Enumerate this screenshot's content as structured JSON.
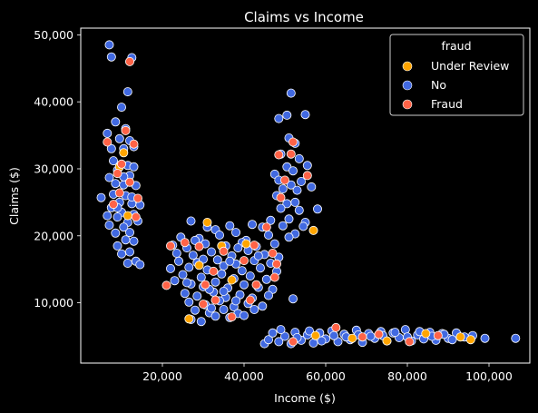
{
  "chart_data": {
    "type": "scatter",
    "title": "Claims vs Income",
    "xlabel": "Income ($)",
    "ylabel": "Claims ($)",
    "xlim": [
      0,
      110000
    ],
    "ylim": [
      1000,
      51000
    ],
    "xticks": [
      20000,
      40000,
      60000,
      80000,
      100000
    ],
    "xtick_labels": [
      "20,000",
      "40,000",
      "60,000",
      "80,000",
      "100,000"
    ],
    "yticks": [
      10000,
      20000,
      30000,
      40000,
      50000
    ],
    "ytick_labels": [
      "10,000",
      "20,000",
      "30,000",
      "40,000",
      "50,000"
    ],
    "grid": false,
    "legend": {
      "title": "fraud",
      "position": "top-right",
      "entries": [
        {
          "label": "Under Review",
          "color": "#ffa500"
        },
        {
          "label": "No",
          "color": "#4169e1"
        },
        {
          "label": "Fraud",
          "color": "#ff6347"
        }
      ]
    },
    "series": [
      {
        "name": "No",
        "color": "#4169e1",
        "points": [
          [
            7000,
            48500
          ],
          [
            7500,
            46700
          ],
          [
            12500,
            46600
          ],
          [
            11500,
            41500
          ],
          [
            10000,
            39200
          ],
          [
            8500,
            37000
          ],
          [
            11000,
            36000
          ],
          [
            6500,
            35300
          ],
          [
            9500,
            34500
          ],
          [
            12000,
            34200
          ],
          [
            13000,
            33300
          ],
          [
            7500,
            33000
          ],
          [
            10500,
            33000
          ],
          [
            8000,
            31200
          ],
          [
            11500,
            30500
          ],
          [
            13000,
            30300
          ],
          [
            9000,
            29800
          ],
          [
            12000,
            29000
          ],
          [
            7000,
            28700
          ],
          [
            8500,
            27800
          ],
          [
            10500,
            27600
          ],
          [
            13500,
            27500
          ],
          [
            5000,
            25700
          ],
          [
            8000,
            26200
          ],
          [
            11000,
            26000
          ],
          [
            9500,
            25000
          ],
          [
            12500,
            24800
          ],
          [
            7500,
            24200
          ],
          [
            14500,
            24600
          ],
          [
            10000,
            23500
          ],
          [
            13000,
            23200
          ],
          [
            6500,
            23000
          ],
          [
            9000,
            22800
          ],
          [
            11500,
            22000
          ],
          [
            14000,
            22200
          ],
          [
            7000,
            21600
          ],
          [
            10500,
            21300
          ],
          [
            12000,
            20500
          ],
          [
            8500,
            20400
          ],
          [
            11000,
            19400
          ],
          [
            13000,
            19200
          ],
          [
            9000,
            18500
          ],
          [
            12000,
            17600
          ],
          [
            10000,
            17300
          ],
          [
            11500,
            15900
          ],
          [
            13500,
            16200
          ],
          [
            14500,
            15700
          ],
          [
            9000,
            24200
          ],
          [
            12500,
            25800
          ],
          [
            10500,
            28800
          ],
          [
            51500,
            41300
          ],
          [
            50500,
            38000
          ],
          [
            48500,
            37500
          ],
          [
            55000,
            38100
          ],
          [
            51000,
            34600
          ],
          [
            52500,
            33800
          ],
          [
            53500,
            31500
          ],
          [
            49000,
            32200
          ],
          [
            50500,
            30300
          ],
          [
            55500,
            30500
          ],
          [
            47500,
            29200
          ],
          [
            52000,
            29700
          ],
          [
            48500,
            28300
          ],
          [
            54000,
            28100
          ],
          [
            51500,
            27600
          ],
          [
            49500,
            27000
          ],
          [
            53000,
            26800
          ],
          [
            56500,
            27300
          ],
          [
            48000,
            26000
          ],
          [
            52500,
            25000
          ],
          [
            50500,
            24800
          ],
          [
            49000,
            24100
          ],
          [
            53500,
            23800
          ],
          [
            58000,
            24000
          ],
          [
            46500,
            22300
          ],
          [
            51000,
            22500
          ],
          [
            55000,
            22000
          ],
          [
            49500,
            21500
          ],
          [
            52500,
            20300
          ],
          [
            54500,
            21400
          ],
          [
            51000,
            19800
          ],
          [
            52000,
            10600
          ],
          [
            27000,
            22200
          ],
          [
            31000,
            21300
          ],
          [
            33000,
            20900
          ],
          [
            36500,
            21500
          ],
          [
            38000,
            20500
          ],
          [
            42000,
            21700
          ],
          [
            44500,
            21300
          ],
          [
            24500,
            19800
          ],
          [
            29000,
            19600
          ],
          [
            34000,
            20100
          ],
          [
            40500,
            19300
          ],
          [
            46000,
            20100
          ],
          [
            22500,
            18600
          ],
          [
            26000,
            18200
          ],
          [
            30500,
            18800
          ],
          [
            35500,
            18500
          ],
          [
            39500,
            19000
          ],
          [
            43000,
            18400
          ],
          [
            47500,
            18800
          ],
          [
            23500,
            17400
          ],
          [
            27500,
            17100
          ],
          [
            32000,
            17600
          ],
          [
            37000,
            17000
          ],
          [
            41000,
            17800
          ],
          [
            45000,
            17200
          ],
          [
            48500,
            16800
          ],
          [
            24000,
            16200
          ],
          [
            28500,
            16000
          ],
          [
            33500,
            16400
          ],
          [
            38000,
            15800
          ],
          [
            42500,
            16300
          ],
          [
            46500,
            15900
          ],
          [
            22000,
            15100
          ],
          [
            26500,
            15300
          ],
          [
            31000,
            14900
          ],
          [
            35000,
            15500
          ],
          [
            39500,
            14800
          ],
          [
            44000,
            15200
          ],
          [
            48000,
            14700
          ],
          [
            25000,
            14200
          ],
          [
            29500,
            13800
          ],
          [
            34500,
            14300
          ],
          [
            37500,
            13600
          ],
          [
            41500,
            14000
          ],
          [
            45500,
            13500
          ],
          [
            27000,
            12800
          ],
          [
            30000,
            12400
          ],
          [
            33000,
            13100
          ],
          [
            36000,
            12200
          ],
          [
            40000,
            12700
          ],
          [
            43500,
            12300
          ],
          [
            47000,
            12000
          ],
          [
            25500,
            11400
          ],
          [
            28500,
            11000
          ],
          [
            32500,
            11600
          ],
          [
            35500,
            10800
          ],
          [
            39000,
            11200
          ],
          [
            42000,
            10700
          ],
          [
            46000,
            11100
          ],
          [
            26500,
            10100
          ],
          [
            30500,
            9700
          ],
          [
            34000,
            10300
          ],
          [
            37500,
            9400
          ],
          [
            41000,
            9900
          ],
          [
            44500,
            9500
          ],
          [
            28000,
            8900
          ],
          [
            31500,
            8500
          ],
          [
            35000,
            9000
          ],
          [
            38500,
            8400
          ],
          [
            27000,
            7500
          ],
          [
            29500,
            7200
          ],
          [
            36500,
            7800
          ],
          [
            33000,
            8000
          ],
          [
            40000,
            8100
          ],
          [
            23000,
            13300
          ],
          [
            28000,
            19300
          ],
          [
            38500,
            18200
          ],
          [
            43500,
            17000
          ],
          [
            30000,
            16500
          ],
          [
            36500,
            16200
          ],
          [
            26000,
            13000
          ],
          [
            31500,
            12000
          ],
          [
            35000,
            11700
          ],
          [
            38000,
            10300
          ],
          [
            32000,
            9200
          ],
          [
            42500,
            9000
          ],
          [
            45000,
            3900
          ],
          [
            46000,
            4500
          ],
          [
            47000,
            5500
          ],
          [
            48500,
            4200
          ],
          [
            50000,
            5000
          ],
          [
            51500,
            3900
          ],
          [
            52500,
            5600
          ],
          [
            54000,
            4400
          ],
          [
            55500,
            5200
          ],
          [
            57000,
            4000
          ],
          [
            58500,
            5500
          ],
          [
            60000,
            4600
          ],
          [
            61500,
            5800
          ],
          [
            63000,
            4200
          ],
          [
            64500,
            5300
          ],
          [
            66000,
            4500
          ],
          [
            67500,
            5900
          ],
          [
            69000,
            4100
          ],
          [
            70500,
            5400
          ],
          [
            72000,
            4700
          ],
          [
            73500,
            5700
          ],
          [
            75000,
            4300
          ],
          [
            76500,
            5500
          ],
          [
            78000,
            4800
          ],
          [
            79500,
            6000
          ],
          [
            81000,
            4300
          ],
          [
            82500,
            5200
          ],
          [
            84000,
            4600
          ],
          [
            85500,
            5600
          ],
          [
            87000,
            4400
          ],
          [
            88500,
            5400
          ],
          [
            90000,
            4700
          ],
          [
            92000,
            5500
          ],
          [
            94000,
            4900
          ],
          [
            96000,
            5100
          ],
          [
            99000,
            4700
          ],
          [
            106500,
            4700
          ],
          [
            49000,
            6000
          ],
          [
            53000,
            4800
          ],
          [
            56000,
            5800
          ],
          [
            59000,
            4300
          ],
          [
            62000,
            5100
          ],
          [
            65000,
            4900
          ],
          [
            68000,
            5200
          ],
          [
            71000,
            5000
          ],
          [
            74000,
            5100
          ],
          [
            77000,
            5600
          ],
          [
            80000,
            4900
          ],
          [
            83000,
            5700
          ],
          [
            86000,
            5000
          ],
          [
            89000,
            5300
          ],
          [
            91000,
            4500
          ]
        ]
      },
      {
        "name": "Under Review",
        "color": "#ffa500",
        "points": [
          [
            9500,
            30300
          ],
          [
            10500,
            32400
          ],
          [
            11500,
            23000
          ],
          [
            31000,
            22000
          ],
          [
            34500,
            18500
          ],
          [
            40500,
            18800
          ],
          [
            29000,
            15600
          ],
          [
            37000,
            13400
          ],
          [
            26500,
            7600
          ],
          [
            57000,
            20800
          ],
          [
            57500,
            5100
          ],
          [
            66500,
            4700
          ],
          [
            75000,
            4300
          ],
          [
            93000,
            4900
          ],
          [
            95500,
            4500
          ],
          [
            84500,
            5400
          ]
        ]
      },
      {
        "name": "Fraud",
        "color": "#ff6347",
        "points": [
          [
            12000,
            46000
          ],
          [
            6500,
            34000
          ],
          [
            11000,
            35700
          ],
          [
            13000,
            33700
          ],
          [
            10000,
            30700
          ],
          [
            9000,
            29300
          ],
          [
            12000,
            28000
          ],
          [
            9500,
            26400
          ],
          [
            14000,
            25600
          ],
          [
            8000,
            24700
          ],
          [
            13500,
            22800
          ],
          [
            52000,
            34000
          ],
          [
            51500,
            32200
          ],
          [
            55500,
            29000
          ],
          [
            50000,
            28300
          ],
          [
            49000,
            25700
          ],
          [
            48500,
            32100
          ],
          [
            22000,
            18500
          ],
          [
            25500,
            19000
          ],
          [
            29000,
            18400
          ],
          [
            35000,
            17700
          ],
          [
            42500,
            18600
          ],
          [
            45500,
            21300
          ],
          [
            32500,
            14700
          ],
          [
            40000,
            16300
          ],
          [
            47000,
            17400
          ],
          [
            48000,
            15800
          ],
          [
            30500,
            12700
          ],
          [
            43000,
            12700
          ],
          [
            21000,
            12600
          ],
          [
            33000,
            10400
          ],
          [
            37000,
            7900
          ],
          [
            41500,
            10400
          ],
          [
            30000,
            9800
          ],
          [
            47500,
            13800
          ],
          [
            52000,
            4200
          ],
          [
            62500,
            6300
          ],
          [
            69000,
            4900
          ],
          [
            73000,
            5300
          ],
          [
            80500,
            4200
          ],
          [
            87500,
            5100
          ]
        ]
      }
    ]
  }
}
